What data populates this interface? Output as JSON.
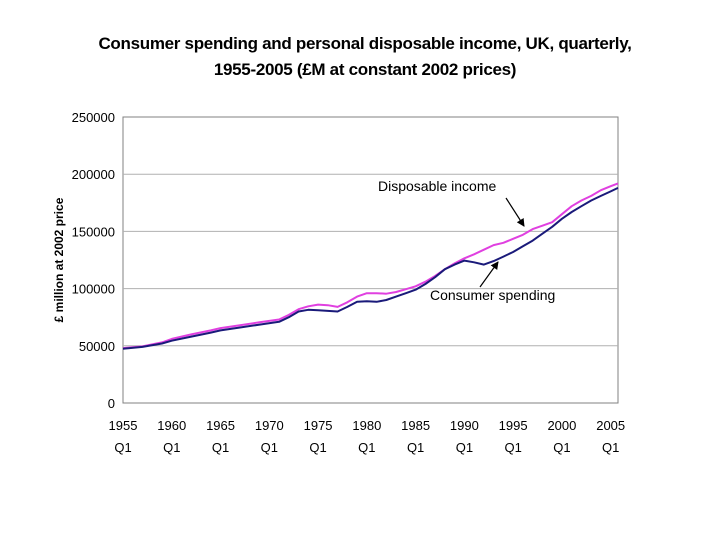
{
  "chart_data": {
    "type": "line",
    "title_line1": "Consumer spending and personal disposable income, UK, quarterly,",
    "title_line2": "1955-2005 (£M at constant 2002 prices)",
    "ylabel": "£ million at 2002 price",
    "xlabel": "",
    "ylim": [
      0,
      250000
    ],
    "xlim": [
      1955,
      2005.75
    ],
    "yticks": [
      "0",
      "50000",
      "100000",
      "150000",
      "200000",
      "250000"
    ],
    "xticks": [
      {
        "year": "1955",
        "q": "Q1"
      },
      {
        "year": "1960",
        "q": "Q1"
      },
      {
        "year": "1965",
        "q": "Q1"
      },
      {
        "year": "1970",
        "q": "Q1"
      },
      {
        "year": "1975",
        "q": "Q1"
      },
      {
        "year": "1980",
        "q": "Q1"
      },
      {
        "year": "1985",
        "q": "Q1"
      },
      {
        "year": "1990",
        "q": "Q1"
      },
      {
        "year": "1995",
        "q": "Q1"
      },
      {
        "year": "2000",
        "q": "Q1"
      },
      {
        "year": "2005",
        "q": "Q1"
      }
    ],
    "grid": true,
    "series": [
      {
        "name": "Disposable income",
        "color": "#e040e0",
        "x": [
          1955,
          1957,
          1959,
          1960,
          1962,
          1964,
          1965,
          1967,
          1969,
          1971,
          1972,
          1973,
          1974,
          1975,
          1976,
          1977,
          1978,
          1979,
          1980,
          1981,
          1982,
          1983,
          1984,
          1985,
          1986,
          1987,
          1988,
          1989,
          1990,
          1991,
          1992,
          1993,
          1994,
          1995,
          1996,
          1997,
          1998,
          1999,
          2000,
          2001,
          2002,
          2003,
          2004,
          2005,
          2005.75
        ],
        "values": [
          48000,
          49500,
          53000,
          56000,
          60000,
          63500,
          65500,
          68000,
          70500,
          73000,
          77000,
          82000,
          84500,
          86000,
          85500,
          84000,
          88000,
          93000,
          96000,
          96000,
          95500,
          97000,
          99500,
          102000,
          106000,
          111000,
          117000,
          122000,
          126500,
          130000,
          134000,
          138000,
          140000,
          143500,
          147000,
          152000,
          155000,
          158000,
          165000,
          172000,
          177000,
          181000,
          186000,
          189500,
          192000
        ]
      },
      {
        "name": "Consumer spending",
        "color": "#1a1a7a",
        "x": [
          1955,
          1957,
          1959,
          1960,
          1962,
          1964,
          1965,
          1967,
          1969,
          1971,
          1972,
          1973,
          1974,
          1975,
          1976,
          1977,
          1978,
          1979,
          1980,
          1981,
          1982,
          1983,
          1984,
          1985,
          1986,
          1987,
          1988,
          1989,
          1990,
          1991,
          1992,
          1993,
          1994,
          1995,
          1996,
          1997,
          1998,
          1999,
          2000,
          2001,
          2002,
          2003,
          2004,
          2005,
          2005.75
        ],
        "values": [
          47500,
          49000,
          52000,
          54500,
          58000,
          61500,
          63500,
          66000,
          68500,
          71000,
          75000,
          80000,
          81500,
          81000,
          80500,
          80000,
          84000,
          88500,
          89000,
          88500,
          90000,
          93000,
          96000,
          99000,
          104000,
          110000,
          117000,
          121000,
          124500,
          123000,
          121000,
          124000,
          128000,
          132000,
          137000,
          142000,
          148000,
          154000,
          161000,
          167000,
          172000,
          177000,
          181000,
          185000,
          188000
        ]
      }
    ],
    "annotations": [
      {
        "text": "Disposable income"
      },
      {
        "text": "Consumer spending"
      }
    ]
  }
}
